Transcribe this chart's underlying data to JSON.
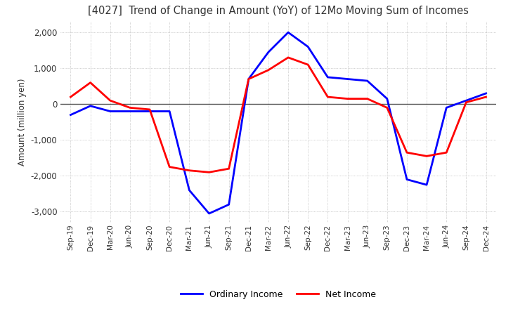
{
  "title": "[4027]  Trend of Change in Amount (YoY) of 12Mo Moving Sum of Incomes",
  "ylabel": "Amount (million yen)",
  "background_color": "#ffffff",
  "grid_color": "#aaaaaa",
  "ordinary_income_color": "#0000ff",
  "net_income_color": "#ff0000",
  "ylim": [
    -3300,
    2300
  ],
  "yticks": [
    -3000,
    -2000,
    -1000,
    0,
    1000,
    2000
  ],
  "x_labels": [
    "Sep-19",
    "Dec-19",
    "Mar-20",
    "Jun-20",
    "Sep-20",
    "Dec-20",
    "Mar-21",
    "Jun-21",
    "Sep-21",
    "Dec-21",
    "Mar-22",
    "Jun-22",
    "Sep-22",
    "Dec-22",
    "Mar-23",
    "Jun-23",
    "Sep-23",
    "Dec-23",
    "Mar-24",
    "Jun-24",
    "Sep-24",
    "Dec-24"
  ],
  "ordinary_income": [
    -300,
    -50,
    -200,
    -200,
    -200,
    -200,
    -2400,
    -3050,
    -2800,
    700,
    1450,
    2000,
    1600,
    750,
    700,
    650,
    150,
    -2100,
    -2250,
    -100,
    100,
    300
  ],
  "net_income": [
    200,
    600,
    100,
    -100,
    -150,
    -1750,
    -1850,
    -1900,
    -1800,
    700,
    950,
    1300,
    1100,
    200,
    150,
    150,
    -100,
    -1350,
    -1450,
    -1350,
    50,
    200
  ]
}
